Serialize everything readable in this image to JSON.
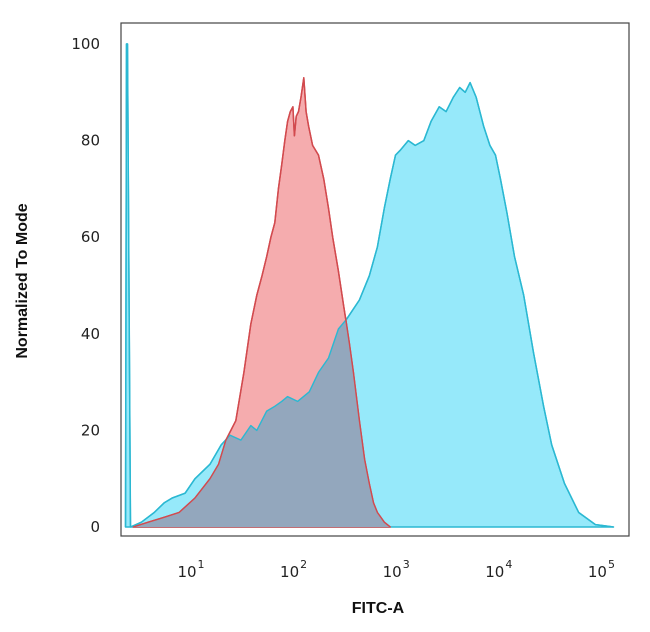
{
  "chart_data": {
    "type": "area",
    "title": "",
    "xlabel": "FITC-A",
    "ylabel": "Normalized To Mode",
    "x_scale": "log",
    "xlim": [
      1.9,
      170000
    ],
    "ylim": [
      0,
      100
    ],
    "yticks": [
      0,
      20,
      40,
      60,
      80,
      100
    ],
    "xticks": [
      {
        "base": "10",
        "exp": "1",
        "value": 10
      },
      {
        "base": "10",
        "exp": "2",
        "value": 100
      },
      {
        "base": "10",
        "exp": "3",
        "value": 1000
      },
      {
        "base": "10",
        "exp": "4",
        "value": 10000
      },
      {
        "base": "10",
        "exp": "5",
        "value": 100000
      }
    ],
    "grid": false,
    "legend": "none",
    "series": [
      {
        "color": "#f4a3a5",
        "stroke": "#d24a4e",
        "points": [
          [
            2.5,
            0
          ],
          [
            3.5,
            1
          ],
          [
            5,
            2
          ],
          [
            7,
            3
          ],
          [
            10,
            6
          ],
          [
            14,
            10
          ],
          [
            17,
            13
          ],
          [
            20,
            18
          ],
          [
            25,
            22
          ],
          [
            30,
            32
          ],
          [
            35,
            42
          ],
          [
            40,
            48
          ],
          [
            45,
            52
          ],
          [
            50,
            56
          ],
          [
            55,
            60
          ],
          [
            60,
            63
          ],
          [
            65,
            70
          ],
          [
            70,
            75
          ],
          [
            75,
            80
          ],
          [
            80,
            84
          ],
          [
            85,
            86
          ],
          [
            90,
            87
          ],
          [
            93,
            81
          ],
          [
            97,
            85
          ],
          [
            102,
            86
          ],
          [
            108,
            89
          ],
          [
            115,
            93
          ],
          [
            121,
            86
          ],
          [
            128,
            83
          ],
          [
            140,
            79
          ],
          [
            160,
            77
          ],
          [
            180,
            72
          ],
          [
            200,
            66
          ],
          [
            220,
            60
          ],
          [
            250,
            53
          ],
          [
            280,
            46
          ],
          [
            300,
            42
          ],
          [
            320,
            38
          ],
          [
            350,
            32
          ],
          [
            400,
            22
          ],
          [
            450,
            14
          ],
          [
            500,
            9
          ],
          [
            550,
            5
          ],
          [
            600,
            3
          ],
          [
            700,
            1
          ],
          [
            800,
            0
          ]
        ]
      },
      {
        "color": "#96e9fa",
        "stroke": "#2bb8d2",
        "points": [
          [
            2.1,
            0
          ],
          [
            2.15,
            100
          ],
          [
            2.2,
            100
          ],
          [
            2.35,
            0
          ],
          [
            3,
            1
          ],
          [
            4,
            3
          ],
          [
            5,
            5
          ],
          [
            6,
            6
          ],
          [
            8,
            7
          ],
          [
            10,
            10
          ],
          [
            14,
            13
          ],
          [
            18,
            17
          ],
          [
            22,
            19
          ],
          [
            28,
            18
          ],
          [
            35,
            21
          ],
          [
            40,
            20
          ],
          [
            50,
            24
          ],
          [
            60,
            25
          ],
          [
            70,
            26
          ],
          [
            80,
            27
          ],
          [
            100,
            26
          ],
          [
            130,
            28
          ],
          [
            160,
            32
          ],
          [
            200,
            35
          ],
          [
            250,
            41
          ],
          [
            300,
            43
          ],
          [
            400,
            47
          ],
          [
            500,
            52
          ],
          [
            600,
            58
          ],
          [
            700,
            66
          ],
          [
            800,
            72
          ],
          [
            900,
            77
          ],
          [
            1000,
            78
          ],
          [
            1200,
            80
          ],
          [
            1400,
            79
          ],
          [
            1700,
            80
          ],
          [
            2000,
            84
          ],
          [
            2400,
            87
          ],
          [
            2800,
            86
          ],
          [
            3300,
            89
          ],
          [
            3800,
            91
          ],
          [
            4300,
            90
          ],
          [
            4800,
            92
          ],
          [
            5500,
            89
          ],
          [
            6500,
            83
          ],
          [
            7500,
            79
          ],
          [
            8500,
            77
          ],
          [
            9500,
            72
          ],
          [
            11000,
            65
          ],
          [
            13000,
            56
          ],
          [
            16000,
            48
          ],
          [
            20000,
            36
          ],
          [
            25000,
            25
          ],
          [
            30000,
            17
          ],
          [
            40000,
            9
          ],
          [
            55000,
            3
          ],
          [
            80000,
            0.5
          ],
          [
            120000,
            0
          ]
        ]
      }
    ]
  }
}
